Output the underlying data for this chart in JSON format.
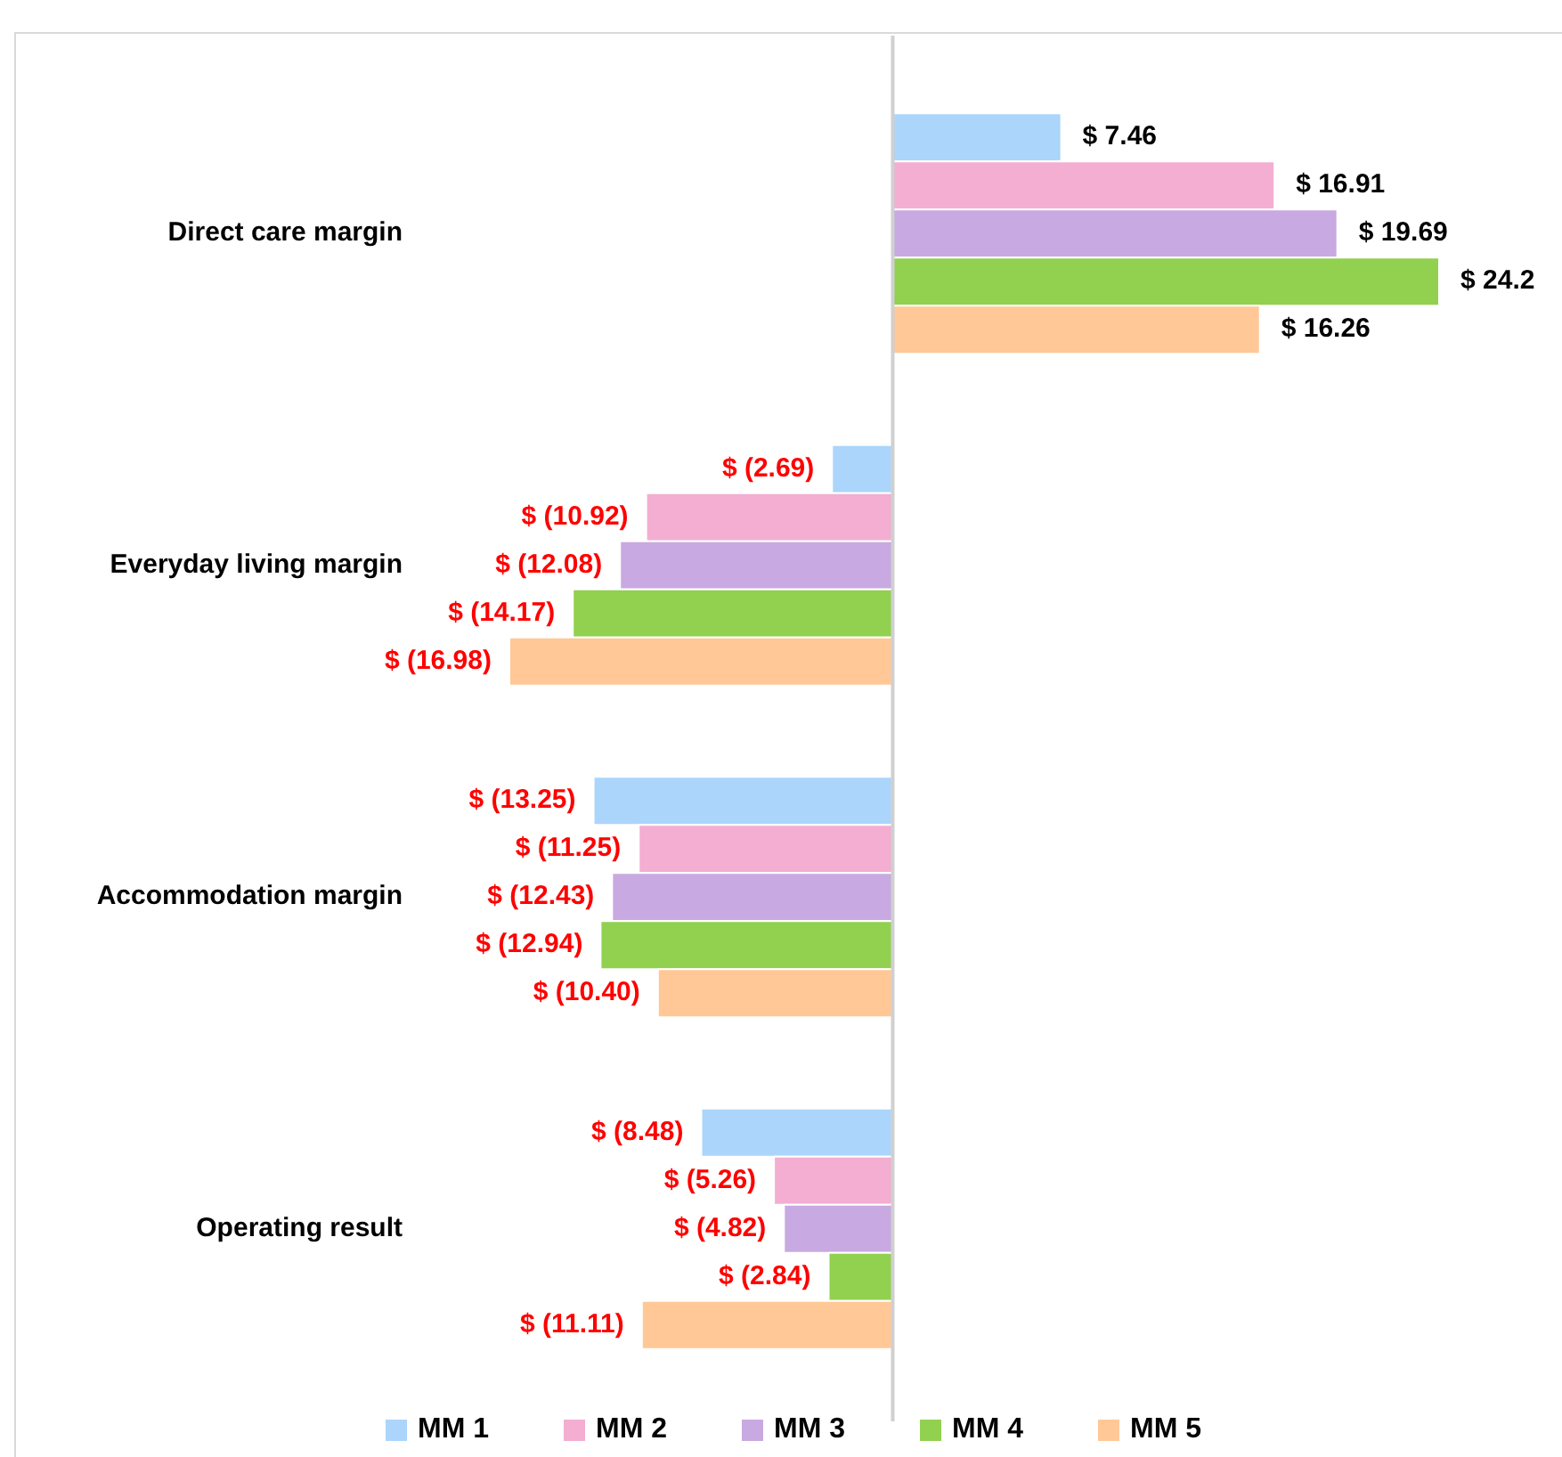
{
  "chart_data": {
    "type": "bar",
    "orientation": "horizontal",
    "categories": [
      "Direct care margin",
      "Everyday living margin",
      "Accommodation margin",
      "Operating result"
    ],
    "series": [
      {
        "name": "MM 1",
        "color": "#abd5fb",
        "values": [
          7.46,
          -2.69,
          -13.25,
          -8.48
        ],
        "value_labels": [
          "$ 7.46",
          "$ (2.69)",
          "$ (13.25)",
          "$ (8.48)"
        ]
      },
      {
        "name": "MM 2",
        "color": "#f3aed2",
        "values": [
          16.91,
          -10.92,
          -11.25,
          -5.26
        ],
        "value_labels": [
          "$ 16.91",
          "$ (10.92)",
          "$ (11.25)",
          "$ (5.26)"
        ]
      },
      {
        "name": "MM 3",
        "color": "#c9a9e1",
        "values": [
          19.69,
          -12.08,
          -12.43,
          -4.82
        ],
        "value_labels": [
          "$ 19.69",
          "$ (12.08)",
          "$ (12.43)",
          "$ (4.82)"
        ]
      },
      {
        "name": "MM 4",
        "color": "#92d050",
        "values": [
          24.2,
          -14.17,
          -12.94,
          -2.84
        ],
        "value_labels": [
          "$ 24.2",
          "$ (14.17)",
          "$ (12.94)",
          "$ (2.84)"
        ]
      },
      {
        "name": "MM 5",
        "color": "#ffc896",
        "values": [
          16.26,
          -16.98,
          -10.4,
          -11.11
        ],
        "value_labels": [
          "$ 16.26",
          "$ (16.98)",
          "$ (10.40)",
          "$ (11.11)"
        ]
      }
    ],
    "legend": "bottom"
  }
}
